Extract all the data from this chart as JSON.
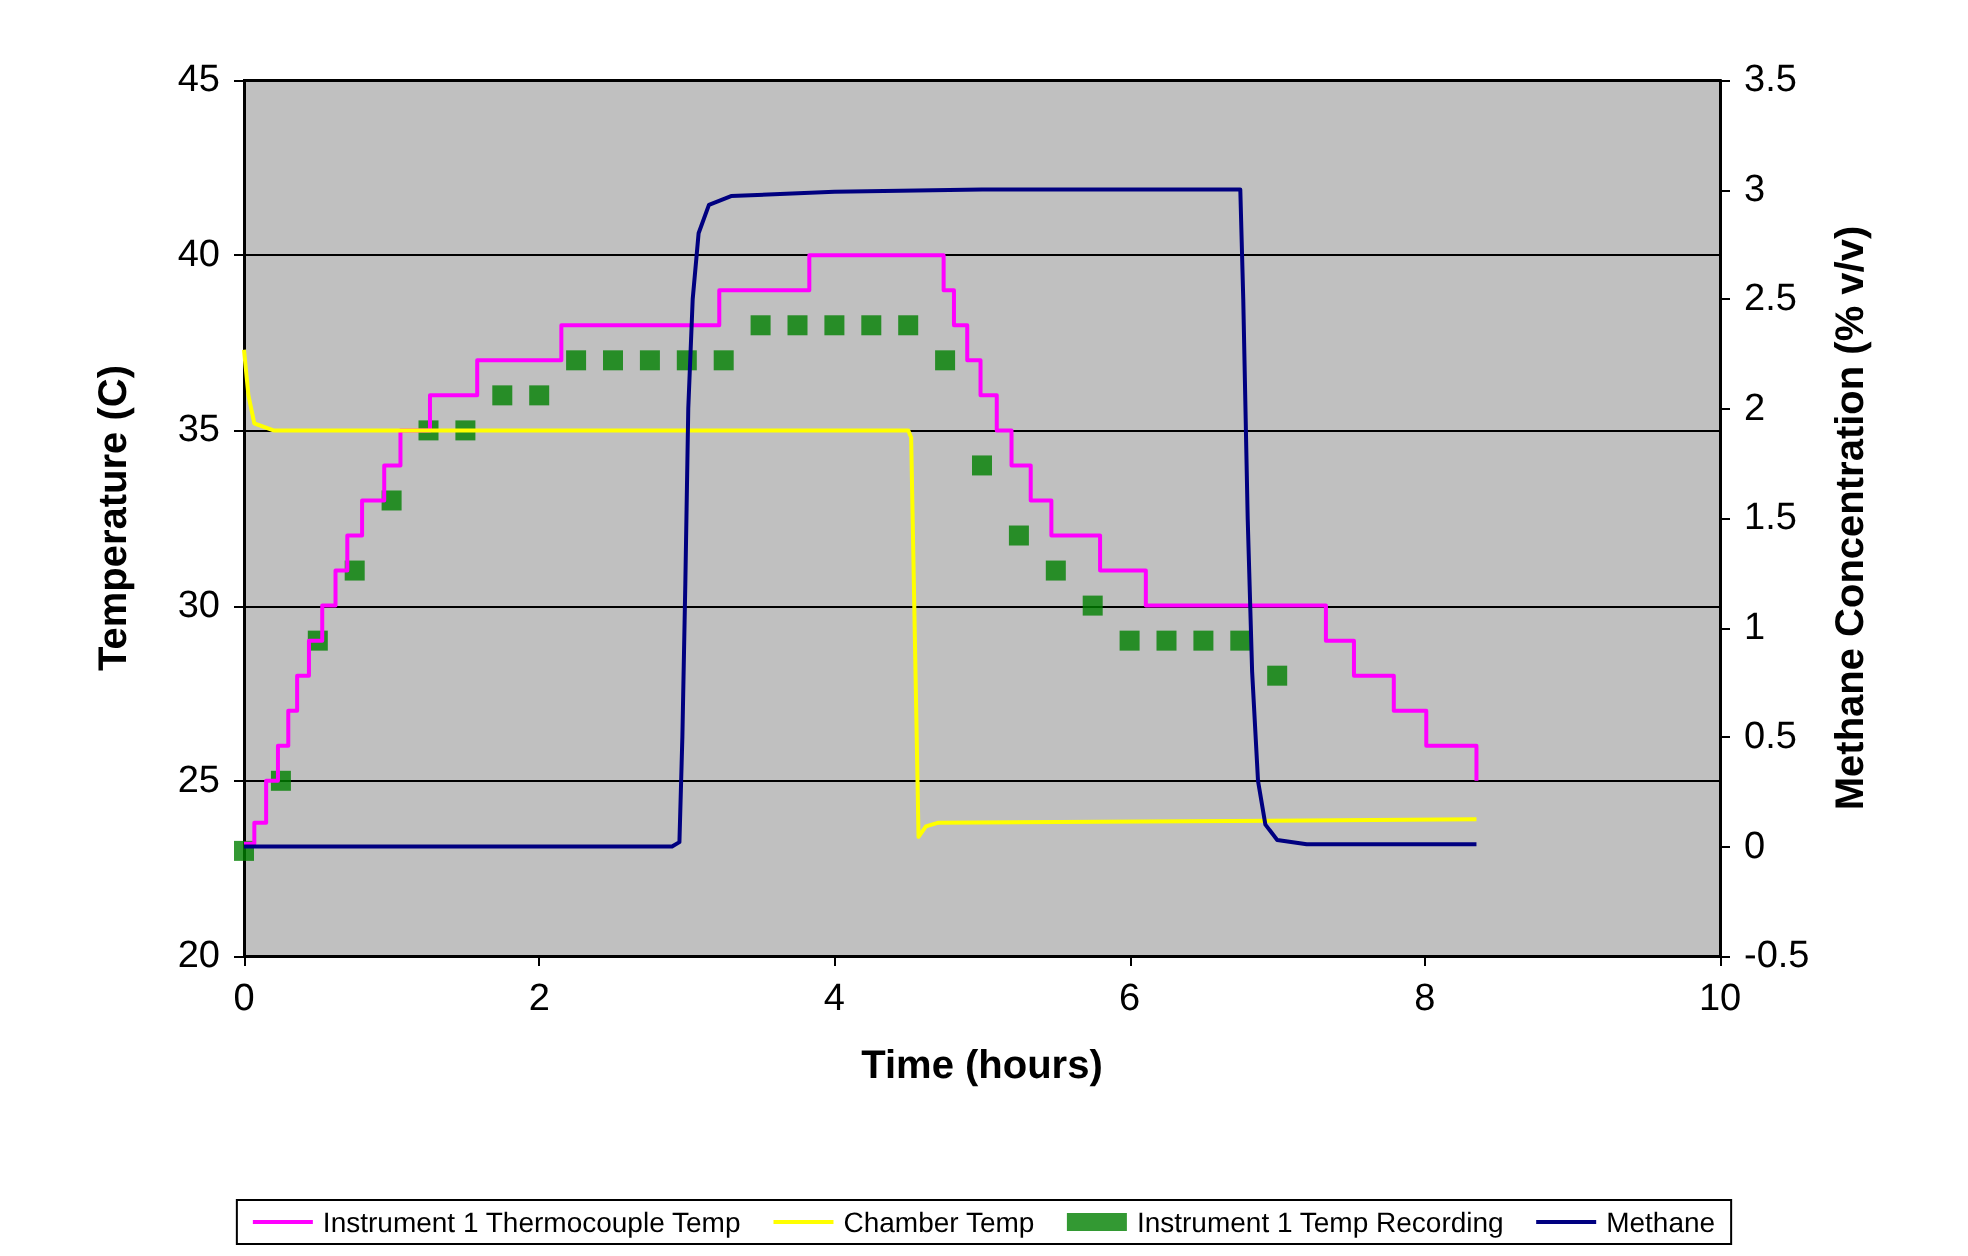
{
  "chart_data": {
    "type": "line",
    "xlabel": "Time (hours)",
    "ylabel": "Temperature (C)",
    "y2label": "Methane Concentration (% v/v)",
    "xlim": [
      0,
      10
    ],
    "xticks": [
      0,
      2,
      4,
      6,
      8,
      10
    ],
    "ylim": [
      20,
      45
    ],
    "yticks": [
      20,
      25,
      30,
      35,
      40,
      45
    ],
    "y2lim": [
      -0.5,
      3.5
    ],
    "y2ticks": [
      -0.5,
      0,
      0.5,
      1,
      1.5,
      2,
      2.5,
      3,
      3.5
    ],
    "grid": "y",
    "legend": "bottom",
    "series": [
      {
        "name": "Instrument 1 Thermocouple Temp",
        "type": "step",
        "color": "#ff00ff",
        "marker": "none",
        "x": [
          0,
          0.07,
          0.15,
          0.23,
          0.3,
          0.36,
          0.44,
          0.53,
          0.62,
          0.7,
          0.8,
          0.95,
          1.06,
          1.26,
          1.58,
          2.15,
          3.22,
          3.83,
          4.74,
          4.81,
          4.9,
          4.99,
          5.1,
          5.2,
          5.33,
          5.47,
          5.8,
          6.11,
          7.33,
          7.52,
          7.79,
          8.01,
          8.35
        ],
        "values": [
          23.2,
          23.8,
          25,
          26,
          27,
          28,
          29,
          30,
          31,
          32,
          33,
          34,
          35,
          36,
          37,
          38,
          39,
          40,
          39,
          38,
          37,
          36,
          35,
          34,
          33,
          32,
          31,
          30,
          29,
          28,
          27,
          26,
          25
        ]
      },
      {
        "name": "Chamber Temp",
        "color": "#ffff00",
        "marker": "none",
        "x": [
          0,
          0.03,
          0.07,
          0.2,
          4.5,
          4.52,
          4.55,
          4.57,
          4.62,
          4.7,
          8.35
        ],
        "values": [
          37.3,
          36,
          35.2,
          35,
          35,
          34.8,
          28,
          23.4,
          23.7,
          23.8,
          23.9
        ]
      },
      {
        "name": "Instrument 1 Temp Recording",
        "type": "scatter",
        "color": "#008000",
        "marker": "square",
        "x": [
          0,
          0.25,
          0.5,
          0.75,
          1,
          1.25,
          1.5,
          1.75,
          2,
          2.25,
          2.5,
          2.75,
          3,
          3.25,
          3.5,
          3.75,
          4,
          4.25,
          4.5,
          4.75,
          5,
          5.25,
          5.5,
          5.75,
          6,
          6.25,
          6.5,
          6.75,
          7
        ],
        "values": [
          23,
          25,
          29,
          31,
          33,
          35,
          35,
          36,
          36,
          37,
          37,
          37,
          37,
          37,
          38,
          38,
          38,
          38,
          38,
          37,
          34,
          32,
          31,
          30,
          29,
          29,
          29,
          29,
          28
        ]
      },
      {
        "name": "Methane",
        "axis": "y2",
        "color": "#000080",
        "marker": "none",
        "x": [
          0,
          2.9,
          2.95,
          2.97,
          2.99,
          3.01,
          3.04,
          3.08,
          3.15,
          3.3,
          4,
          5,
          6,
          6.75,
          6.77,
          6.8,
          6.83,
          6.87,
          6.92,
          7.0,
          7.2,
          8.35
        ],
        "values": [
          0,
          0,
          0.02,
          0.5,
          1.2,
          2.0,
          2.5,
          2.8,
          2.93,
          2.97,
          2.99,
          3.0,
          3.0,
          3.0,
          2.5,
          1.5,
          0.8,
          0.3,
          0.1,
          0.03,
          0.01,
          0.01
        ]
      }
    ]
  }
}
